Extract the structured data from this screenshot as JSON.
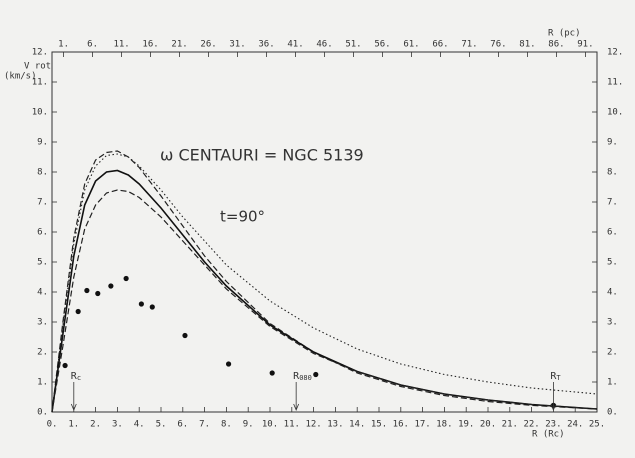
{
  "chart_data": {
    "type": "line",
    "title": "ω CENTAURI = NGC 5139",
    "subtitle": "t=90°",
    "ylabel": [
      "V rot",
      "(km/s)"
    ],
    "xlabel": "R (Rc)",
    "x2label": "R (pc)",
    "x": [
      0,
      0.5,
      1,
      1.5,
      2,
      2.5,
      3,
      3.5,
      4,
      5,
      6,
      7,
      8,
      10,
      12,
      14,
      16,
      18,
      20,
      22,
      25
    ],
    "series": [
      {
        "color": "#222",
        "dash": "1.5 2.5",
        "width": 1.1,
        "values": [
          0,
          2.9,
          5.6,
          7.4,
          8.2,
          8.55,
          8.6,
          8.5,
          8.2,
          7.4,
          6.5,
          5.7,
          4.9,
          3.7,
          2.8,
          2.1,
          1.6,
          1.25,
          1.0,
          0.8,
          0.6
        ]
      },
      {
        "color": "#222",
        "dash": "6 3",
        "width": 1.2,
        "values": [
          0,
          3.0,
          5.8,
          7.6,
          8.4,
          8.65,
          8.7,
          8.5,
          8.15,
          7.2,
          6.2,
          5.2,
          4.35,
          2.95,
          2.0,
          1.3,
          0.85,
          0.55,
          0.35,
          0.22,
          0.1
        ]
      },
      {
        "color": "#111",
        "dash": "none",
        "width": 1.6,
        "values": [
          0,
          2.6,
          5.2,
          6.9,
          7.7,
          8.0,
          8.05,
          7.9,
          7.6,
          6.8,
          5.9,
          5.0,
          4.2,
          2.9,
          2.0,
          1.35,
          0.9,
          0.6,
          0.4,
          0.25,
          0.1
        ]
      },
      {
        "color": "#222",
        "dash": "6 3",
        "width": 1.2,
        "values": [
          0,
          2.2,
          4.5,
          6.1,
          6.9,
          7.3,
          7.4,
          7.35,
          7.15,
          6.5,
          5.7,
          4.9,
          4.1,
          2.85,
          1.95,
          1.35,
          0.9,
          0.6,
          0.4,
          0.25,
          0.1
        ]
      }
    ],
    "points": {
      "color": "#111",
      "x": [
        0.6,
        1.2,
        1.6,
        2.1,
        2.7,
        3.4,
        4.1,
        4.6,
        6.1,
        8.1,
        10.1,
        12.1,
        23
      ],
      "y": [
        1.55,
        3.35,
        4.05,
        3.95,
        4.2,
        4.45,
        3.6,
        3.5,
        2.55,
        1.6,
        1.3,
        1.25,
        0.22
      ]
    },
    "markers": [
      {
        "label": "R",
        "sub": "c",
        "x": 1
      },
      {
        "label": "R",
        "sub": "080",
        "x": 11.2
      },
      {
        "label": "R",
        "sub": "T",
        "x": 23
      }
    ],
    "xlim": [
      0,
      25
    ],
    "xticks": [
      {
        "value": 0,
        "label": "0."
      },
      {
        "value": 1,
        "label": "1."
      },
      {
        "value": 2,
        "label": "2."
      },
      {
        "value": 3,
        "label": "3."
      },
      {
        "value": 4,
        "label": "4."
      },
      {
        "value": 5,
        "label": "5."
      },
      {
        "value": 6,
        "label": "6."
      },
      {
        "value": 7,
        "label": "7."
      },
      {
        "value": 8,
        "label": "8."
      },
      {
        "value": 9,
        "label": "9."
      },
      {
        "value": 10,
        "label": "10."
      },
      {
        "value": 11,
        "label": "11."
      },
      {
        "value": 12,
        "label": "12."
      },
      {
        "value": 13,
        "label": "13."
      },
      {
        "value": 14,
        "label": "14."
      },
      {
        "value": 15,
        "label": "15."
      },
      {
        "value": 16,
        "label": "16."
      },
      {
        "value": 17,
        "label": "17."
      },
      {
        "value": 18,
        "label": "18."
      },
      {
        "value": 19,
        "label": "19."
      },
      {
        "value": 20,
        "label": "20."
      },
      {
        "value": 21,
        "label": "21."
      },
      {
        "value": 22,
        "label": "22."
      },
      {
        "value": 23,
        "label": "23."
      },
      {
        "value": 24,
        "label": "24."
      },
      {
        "value": 25,
        "label": "25."
      }
    ],
    "x2lim": [
      -1,
      93
    ],
    "x2ticks": [
      {
        "value": 1,
        "label": "1."
      },
      {
        "value": 6,
        "label": "6."
      },
      {
        "value": 11,
        "label": "11."
      },
      {
        "value": 16,
        "label": "16."
      },
      {
        "value": 21,
        "label": "21."
      },
      {
        "value": 26,
        "label": "26."
      },
      {
        "value": 31,
        "label": "31."
      },
      {
        "value": 36,
        "label": "36."
      },
      {
        "value": 41,
        "label": "41."
      },
      {
        "value": 46,
        "label": "46."
      },
      {
        "value": 51,
        "label": "51."
      },
      {
        "value": 56,
        "label": "56."
      },
      {
        "value": 61,
        "label": "61."
      },
      {
        "value": 66,
        "label": "66."
      },
      {
        "value": 71,
        "label": "71."
      },
      {
        "value": 76,
        "label": "76."
      },
      {
        "value": 81,
        "label": "81."
      },
      {
        "value": 86,
        "label": "86."
      },
      {
        "value": 91,
        "label": "91."
      }
    ],
    "ylim": [
      0,
      12
    ],
    "yticks": [
      {
        "value": 0,
        "label": "0."
      },
      {
        "value": 1,
        "label": "1."
      },
      {
        "value": 2,
        "label": "2."
      },
      {
        "value": 3,
        "label": "3."
      },
      {
        "value": 4,
        "label": "4."
      },
      {
        "value": 5,
        "label": "5."
      },
      {
        "value": 6,
        "label": "6."
      },
      {
        "value": 7,
        "label": "7."
      },
      {
        "value": 8,
        "label": "8."
      },
      {
        "value": 9,
        "label": "9."
      },
      {
        "value": 10,
        "label": "10."
      },
      {
        "value": 11,
        "label": "11."
      },
      {
        "value": 12,
        "label": "12."
      }
    ]
  }
}
